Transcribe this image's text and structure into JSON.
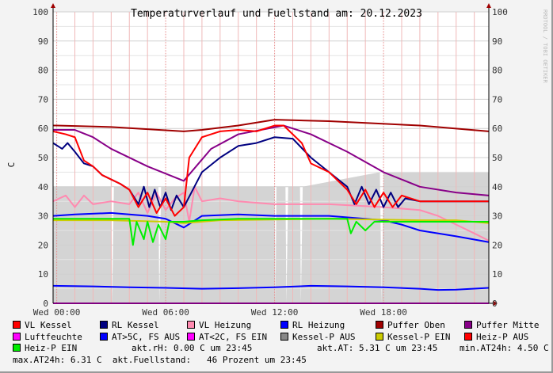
{
  "chart_data": {
    "type": "line",
    "title": "Temperaturverlauf und Fuellstand am: 20.12.2023",
    "ylabel": "C",
    "ylim": [
      0,
      100
    ],
    "yticks": [
      0,
      10,
      20,
      30,
      40,
      50,
      60,
      70,
      80,
      90,
      100
    ],
    "xticks": [
      {
        "h": 0,
        "label": "Wed 00:00"
      },
      {
        "h": 6,
        "label": "Wed 06:00"
      },
      {
        "h": 12,
        "label": "Wed 12:00"
      },
      {
        "h": 18,
        "label": "Wed 18:00"
      }
    ],
    "xlim_hours": [
      -0.2,
      23.8
    ],
    "grid": true,
    "watermark": "RRDTOOL / TOBI OETIKER",
    "area": {
      "name": "Kessel-P AUS",
      "color": "#d4d4d4",
      "x": [
        -0.2,
        3,
        3.05,
        3.15,
        5.6,
        5.65,
        5.75,
        12,
        12.05,
        12.1,
        12.6,
        12.65,
        12.75,
        13.4,
        13.45,
        13.55,
        17.8,
        17.9,
        18,
        23.8
      ],
      "values": [
        40,
        40,
        0,
        40,
        40,
        0,
        40,
        40,
        0,
        40,
        40,
        0,
        40,
        40,
        0,
        40,
        45,
        0,
        45,
        45
      ]
    },
    "series": [
      {
        "name": "Puffer Oben",
        "color": "#a00000",
        "x": [
          -0.2,
          0,
          3,
          7,
          8,
          10,
          12,
          15,
          20,
          23.8
        ],
        "values": [
          61,
          61,
          60.5,
          59,
          59.5,
          61,
          63,
          62.5,
          61,
          59
        ]
      },
      {
        "name": "Puffer Mitte",
        "color": "#880088",
        "x": [
          -0.2,
          1,
          2,
          3,
          5,
          7,
          8.5,
          10,
          12.5,
          14,
          16,
          18,
          20,
          22,
          23.8
        ],
        "values": [
          59.5,
          59.5,
          57,
          53,
          47,
          42,
          53,
          58,
          61,
          58,
          52,
          45,
          40,
          38,
          37
        ]
      },
      {
        "name": "VL Heizung",
        "color": "#ff8ab0",
        "x": [
          -0.2,
          0.5,
          1,
          1.5,
          2,
          3,
          4,
          4.5,
          5,
          5.5,
          6,
          6.5,
          7,
          7.3,
          7.6,
          8,
          9,
          10,
          12,
          14,
          15,
          18,
          20,
          21,
          22,
          23,
          23.8
        ],
        "values": [
          35,
          37,
          33,
          37,
          34,
          35,
          34,
          38,
          31,
          38,
          32,
          36,
          38,
          28,
          40,
          35,
          36,
          35,
          34,
          34,
          34,
          33,
          32,
          30,
          27,
          24,
          21.5
        ]
      },
      {
        "name": "RL Heizung",
        "color": "#0000ff",
        "x": [
          -0.2,
          1,
          3,
          5,
          6,
          7,
          8,
          10,
          12,
          15,
          18,
          19,
          20,
          22,
          23.8
        ],
        "values": [
          30,
          30.5,
          31,
          30,
          29,
          26,
          30,
          30.5,
          30,
          30,
          28.5,
          27,
          25,
          23,
          21
        ]
      },
      {
        "name": "Kessel-P EIN",
        "color": "#cccc00",
        "x": [
          -0.2,
          3,
          6,
          7,
          9,
          15,
          20,
          22,
          23.8
        ],
        "values": [
          28.5,
          28.5,
          28,
          27.5,
          28.5,
          29,
          28.5,
          28.5,
          27.5
        ]
      },
      {
        "name": "Heiz-P EIN",
        "color": "#00ee00",
        "x": [
          -0.2,
          4,
          4.2,
          4.4,
          4.8,
          5,
          5.3,
          5.6,
          6,
          6.2,
          6.5,
          7,
          8,
          10,
          15,
          16,
          16.2,
          16.5,
          17,
          17.5,
          18,
          20,
          23.8
        ],
        "values": [
          29,
          29,
          20,
          28,
          22,
          28,
          21,
          27,
          22,
          28,
          28,
          28,
          28.5,
          29,
          29,
          29,
          24,
          28,
          25,
          28,
          28,
          28,
          28
        ]
      },
      {
        "name": "RL Kessel",
        "color": "#000080",
        "x": [
          -0.2,
          0.3,
          0.6,
          1,
          1.5,
          2,
          2.5,
          3.5,
          4,
          4.5,
          4.8,
          5.1,
          5.4,
          5.7,
          6,
          6.3,
          6.6,
          7,
          8,
          9,
          10,
          11,
          12,
          13,
          14,
          15,
          16,
          16.4,
          16.8,
          17.2,
          17.6,
          18,
          18.4,
          18.8,
          19.2,
          20,
          21,
          23.8
        ],
        "values": [
          55,
          53,
          55,
          52,
          48,
          47,
          44,
          41,
          39,
          34,
          40,
          33,
          39,
          33,
          38,
          32,
          37,
          33,
          45,
          50,
          54,
          55,
          57,
          56.5,
          50,
          45,
          40,
          34,
          40,
          34,
          39,
          33,
          38,
          33,
          36,
          35,
          35,
          35
        ]
      },
      {
        "name": "VL Kessel",
        "color": "#ff0000",
        "x": [
          -0.2,
          0.5,
          1,
          1.5,
          2,
          2.5,
          3.5,
          4,
          4.5,
          5,
          5.5,
          6,
          6.5,
          7,
          7.3,
          8,
          8.5,
          9,
          10,
          11,
          12,
          12.5,
          13.5,
          14,
          15,
          16,
          16.5,
          17,
          17.5,
          18,
          18.5,
          19,
          20,
          21,
          23.8
        ],
        "values": [
          59,
          58,
          57,
          49,
          47,
          44,
          41,
          39,
          33,
          38,
          31,
          36,
          30,
          33,
          50,
          57,
          58,
          59,
          59.5,
          59,
          61,
          61,
          55,
          48,
          45,
          39,
          34,
          39,
          33,
          38,
          33,
          37,
          35,
          35,
          35
        ]
      },
      {
        "name": "AT>5C, FS AUS",
        "color": "#0000ff",
        "x": [
          -0.2,
          2,
          4,
          6,
          8,
          10,
          12,
          14,
          16,
          18,
          20,
          21,
          22,
          23.8
        ],
        "values": [
          6,
          5.8,
          5.5,
          5.3,
          5,
          5.2,
          5.5,
          6,
          5.8,
          5.5,
          5,
          4.6,
          4.7,
          5.3
        ]
      },
      {
        "name": "Luftfeuchte",
        "color": "#ff00ff",
        "x": [
          -0.2,
          23.8
        ],
        "values": [
          0,
          0
        ]
      }
    ]
  },
  "legend": {
    "rows": [
      [
        {
          "label": "VL Kessel",
          "color": "#ff0000"
        },
        {
          "label": "RL Kessel",
          "color": "#000080"
        },
        {
          "label": "VL Heizung",
          "color": "#ff8ab0"
        },
        {
          "label": "RL Heizung",
          "color": "#0000ff"
        },
        {
          "label": "Puffer Oben",
          "color": "#a00000"
        },
        {
          "label": "Puffer Mitte",
          "color": "#880088"
        }
      ],
      [
        {
          "label": "Luftfeuchte",
          "color": "#ff00ff"
        },
        {
          "label": "AT>5C, FS AUS",
          "color": "#0000ff"
        },
        {
          "label": "AT<2C, FS EIN",
          "color": "#ff00ff"
        },
        {
          "label": "Kessel-P AUS",
          "color": "#888888"
        },
        {
          "label": "Kessel-P EIN",
          "color": "#cccc00"
        },
        {
          "label": "Heiz-P AUS",
          "color": "#ff0000"
        }
      ]
    ],
    "heizp_ein": {
      "label": "Heiz-P EIN",
      "color": "#00ee00"
    },
    "akt_rh": "akt.rH: 0.00 C um 23:45",
    "akt_at": "akt.AT: 5.31 C um 23:45",
    "min_at": "min.AT24h: 4.50 C",
    "max_at": "max.AT24h: 6.31 C",
    "fuellstand": "akt.Fuellstand:   46 Prozent um 23:45"
  }
}
